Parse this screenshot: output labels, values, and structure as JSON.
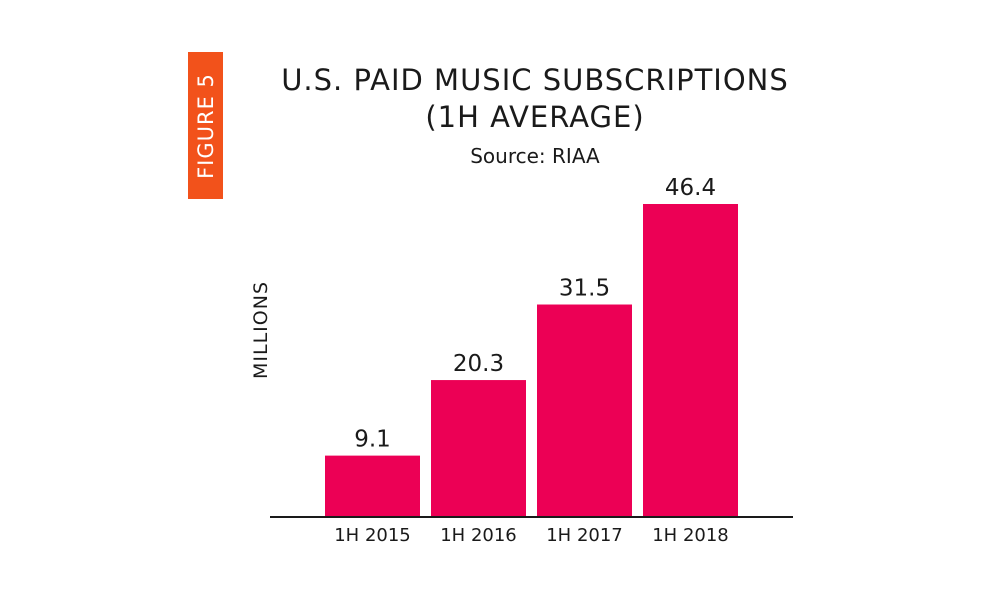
{
  "figure_badge": {
    "label": "FIGURE 5",
    "color": "#f2521b"
  },
  "title_line1": "U.S. PAID MUSIC SUBSCRIPTIONS",
  "title_line2": "(1H AVERAGE)",
  "source": "Source: RIAA",
  "chart_data": {
    "type": "bar",
    "title": "U.S. PAID MUSIC SUBSCRIPTIONS (1H AVERAGE)",
    "subtitle": "Source: RIAA",
    "xlabel": "",
    "ylabel": "MILLIONS",
    "categories": [
      "1H 2015",
      "1H 2016",
      "1H 2017",
      "1H 2018"
    ],
    "values": [
      9.1,
      20.3,
      31.5,
      46.4
    ],
    "data_labels": [
      "9.1",
      "20.3",
      "31.5",
      "46.4"
    ],
    "ylim": [
      0,
      50
    ],
    "grid": false,
    "bar_color": "#ec0055",
    "axis_color": "#1a1a1a"
  }
}
